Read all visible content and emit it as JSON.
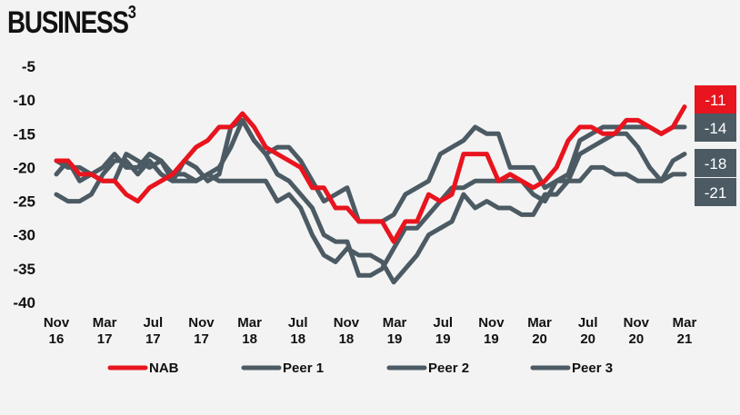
{
  "title": "BUSINESS",
  "title_sup": "3",
  "colors": {
    "nab": "#e8141e",
    "peer": "#4b5a63",
    "background": "#f3f3f3"
  },
  "chart_data": {
    "type": "line",
    "title": "BUSINESS3",
    "xlabel": "",
    "ylabel": "",
    "ylim": [
      -40,
      -5
    ],
    "yticks": [
      -5,
      -10,
      -15,
      -20,
      -25,
      -30,
      -35,
      -40
    ],
    "xticks": [
      {
        "line1": "Nov",
        "line2": "16"
      },
      {
        "line1": "Mar",
        "line2": "17"
      },
      {
        "line1": "Jul",
        "line2": "17"
      },
      {
        "line1": "Nov",
        "line2": "17"
      },
      {
        "line1": "Mar",
        "line2": "18"
      },
      {
        "line1": "Jul",
        "line2": "18"
      },
      {
        "line1": "Nov",
        "line2": "18"
      },
      {
        "line1": "Mar",
        "line2": "19"
      },
      {
        "line1": "Jul",
        "line2": "19"
      },
      {
        "line1": "Nov",
        "line2": "19"
      },
      {
        "line1": "Mar",
        "line2": "20"
      },
      {
        "line1": "Jul",
        "line2": "20"
      },
      {
        "line1": "Nov",
        "line2": "20"
      },
      {
        "line1": "Mar",
        "line2": "21"
      }
    ],
    "grid": false,
    "legend_position": "bottom",
    "series": [
      {
        "name": "NAB",
        "end_label": "-11",
        "values": [
          -19,
          -19,
          -21,
          -21,
          -22,
          -22,
          -24,
          -25,
          -23,
          -22,
          -21,
          -19,
          -17,
          -16,
          -14,
          -14,
          -12,
          -14,
          -17,
          -18,
          -19,
          -20,
          -23,
          -23,
          -26,
          -26,
          -28,
          -28,
          -28,
          -31,
          -28,
          -28,
          -24,
          -25,
          -24,
          -18,
          -18,
          -18,
          -22,
          -21,
          -22,
          -23,
          -22,
          -20,
          -16,
          -14,
          -14,
          -15,
          -15,
          -13,
          -13,
          -14,
          -15,
          -14,
          -11
        ]
      },
      {
        "name": "Peer 1",
        "end_label": "-14",
        "values": [
          -19,
          -20,
          -20,
          -21,
          -22,
          -22,
          -18,
          -19,
          -20,
          -19,
          -21,
          -21,
          -22,
          -21,
          -20,
          -17,
          -13,
          -16,
          -18,
          -17,
          -17,
          -19,
          -22,
          -25,
          -24,
          -23,
          -28,
          -28,
          -28,
          -27,
          -24,
          -23,
          -22,
          -18,
          -17,
          -16,
          -14,
          -15,
          -15,
          -20,
          -20,
          -20,
          -23,
          -22,
          -21,
          -16,
          -15,
          -14,
          -14,
          -14,
          -14,
          -14,
          -15,
          -14,
          -14
        ]
      },
      {
        "name": "Peer 2",
        "end_label": "-18",
        "values": [
          -21,
          -19,
          -22,
          -21,
          -20,
          -18,
          -20,
          -20,
          -18,
          -19,
          -22,
          -19,
          -20,
          -22,
          -21,
          -14,
          -13,
          -16,
          -18,
          -21,
          -22,
          -24,
          -26,
          -30,
          -31,
          -31,
          -36,
          -36,
          -35,
          -32,
          -29,
          -29,
          -27,
          -25,
          -23,
          -23,
          -22,
          -22,
          -22,
          -22,
          -22,
          -24,
          -25,
          -22,
          -22,
          -18,
          -17,
          -16,
          -15,
          -15,
          -17,
          -20,
          -22,
          -19,
          -18
        ]
      },
      {
        "name": "Peer 3",
        "end_label": "-21",
        "values": [
          -24,
          -25,
          -25,
          -24,
          -21,
          -19,
          -19,
          -21,
          -19,
          -21,
          -22,
          -22,
          -22,
          -21,
          -22,
          -22,
          -22,
          -22,
          -22,
          -25,
          -24,
          -26,
          -30,
          -33,
          -34,
          -32,
          -33,
          -33,
          -34,
          -37,
          -35,
          -33,
          -30,
          -29,
          -28,
          -24,
          -26,
          -25,
          -26,
          -26,
          -27,
          -27,
          -24,
          -24,
          -22,
          -22,
          -20,
          -20,
          -21,
          -21,
          -22,
          -22,
          -22,
          -21,
          -21
        ]
      }
    ]
  }
}
